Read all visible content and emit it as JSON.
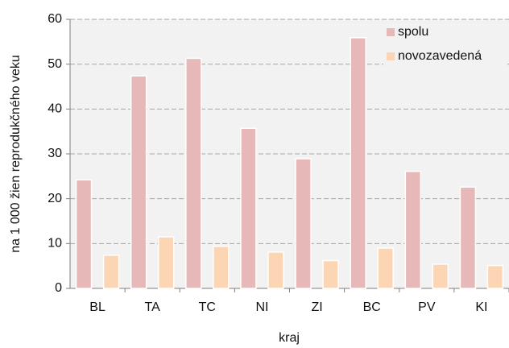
{
  "chart_data": {
    "type": "bar",
    "xlabel": "kraj",
    "ylabel": "na 1 000 žien reprodukčného veku",
    "categories": [
      "BL",
      "TA",
      "TC",
      "NI",
      "ZI",
      "BC",
      "PV",
      "KI"
    ],
    "series": [
      {
        "name": "spolu",
        "color": "#e6b9b8",
        "values": [
          24.2,
          47.4,
          51.3,
          35.7,
          28.9,
          55.9,
          26.1,
          22.6
        ]
      },
      {
        "name": "novozavedená",
        "color": "#fcd5b5",
        "values": [
          7.4,
          11.5,
          9.4,
          8.1,
          6.2,
          9.0,
          5.4,
          5.1
        ]
      }
    ],
    "ylim": [
      0,
      60
    ],
    "yticks": [
      0,
      10,
      20,
      30,
      40,
      50,
      60
    ],
    "grid": true,
    "legend": "top-right"
  }
}
